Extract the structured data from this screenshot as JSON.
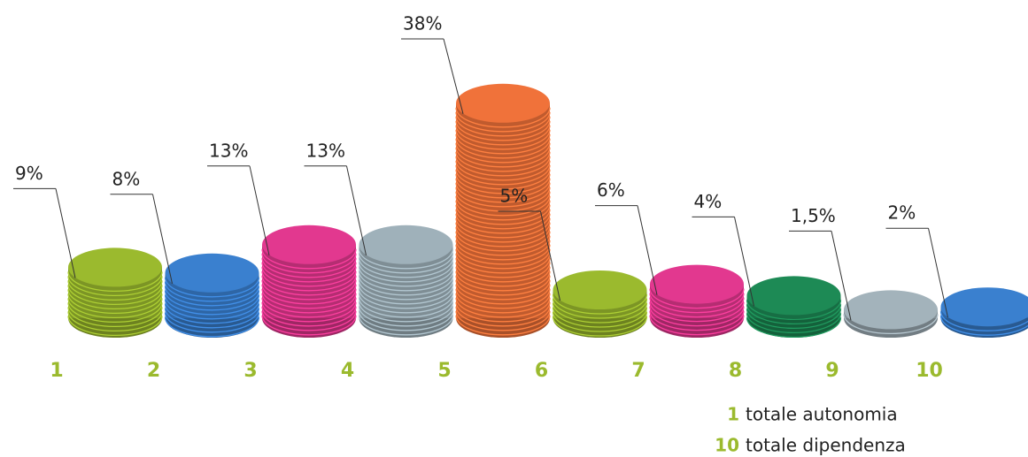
{
  "chart_data": {
    "type": "bar",
    "categories": [
      "1",
      "2",
      "3",
      "4",
      "5",
      "6",
      "7",
      "8",
      "9",
      "10"
    ],
    "values": [
      9,
      8,
      13,
      13,
      38,
      5,
      6,
      4,
      1.5,
      2
    ],
    "value_labels": [
      "9%",
      "8%",
      "13%",
      "13%",
      "38%",
      "5%",
      "6%",
      "4%",
      "1,5%",
      "2%"
    ],
    "colors": [
      "#9bba2e",
      "#3a80cf",
      "#e2388f",
      "#9fb1ba",
      "#f0723a",
      "#9bba2e",
      "#e2388f",
      "#1d8a55",
      "#a3b3bb",
      "#3a80cf"
    ],
    "legend": [
      {
        "key": "1",
        "text": "totale autonomia"
      },
      {
        "key": "10",
        "text": "totale dipendenza"
      }
    ]
  }
}
